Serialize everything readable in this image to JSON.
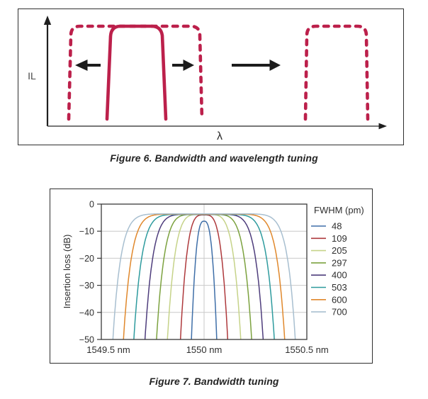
{
  "figure6": {
    "il_label": "IL",
    "lambda_label": "λ",
    "caption": "Figure 6. Bandwidth and wavelength tuning",
    "solid_shape_color": "#bc204b",
    "dashed_shape_color": "#bc204b",
    "arrow_color": "#1c1c1c"
  },
  "figure7": {
    "caption": "Figure 7. Bandwidth tuning"
  },
  "chart_data": [
    {
      "figure": "Figure 6",
      "type": "diagram",
      "caption": "Figure 6. Bandwidth and wavelength tuning",
      "xlabel": "λ",
      "ylabel": "IL",
      "description": "Schematic bandpass filter response: solid narrow passband, dashed wider passband with left/right arrows (bandwidth tuning), and a dashed passband shifted right with a long right arrow (wavelength tuning)."
    },
    {
      "figure": "Figure 7",
      "type": "line",
      "caption": "Figure 7. Bandwidth tuning",
      "ylabel": "Insertion loss (dB)",
      "ylim": [
        -50,
        0
      ],
      "ytick_values": [
        0,
        -10,
        -20,
        -30,
        -40,
        -50
      ],
      "ytick_labels": [
        "0",
        "−10",
        "−20",
        "−30",
        "−40",
        "−50"
      ],
      "x_range_nm": [
        1549.5,
        1550.5
      ],
      "center_nm": 1550,
      "xtick_labels": [
        "1549.5 nm",
        "1550 nm",
        "1550.5 nm"
      ],
      "grid": true,
      "legend_position": "right",
      "legend_title": "FWHM (pm)",
      "series": [
        {
          "label": "48",
          "fwhm_pm": 48,
          "peak_db": -6.3,
          "color": "#3f6fa8"
        },
        {
          "label": "109",
          "fwhm_pm": 109,
          "peak_db": -4.0,
          "color": "#ae393c"
        },
        {
          "label": "205",
          "fwhm_pm": 205,
          "peak_db": -3.8,
          "color": "#c6d389"
        },
        {
          "label": "297",
          "fwhm_pm": 297,
          "peak_db": -3.8,
          "color": "#7ca23f"
        },
        {
          "label": "400",
          "fwhm_pm": 400,
          "peak_db": -3.8,
          "color": "#4e3d7c"
        },
        {
          "label": "503",
          "fwhm_pm": 503,
          "peak_db": -3.8,
          "color": "#2e9b9e"
        },
        {
          "label": "600",
          "fwhm_pm": 600,
          "peak_db": -3.7,
          "color": "#e0882c"
        },
        {
          "label": "700",
          "fwhm_pm": 700,
          "peak_db": -3.6,
          "color": "#a8bfd0"
        }
      ]
    }
  ]
}
